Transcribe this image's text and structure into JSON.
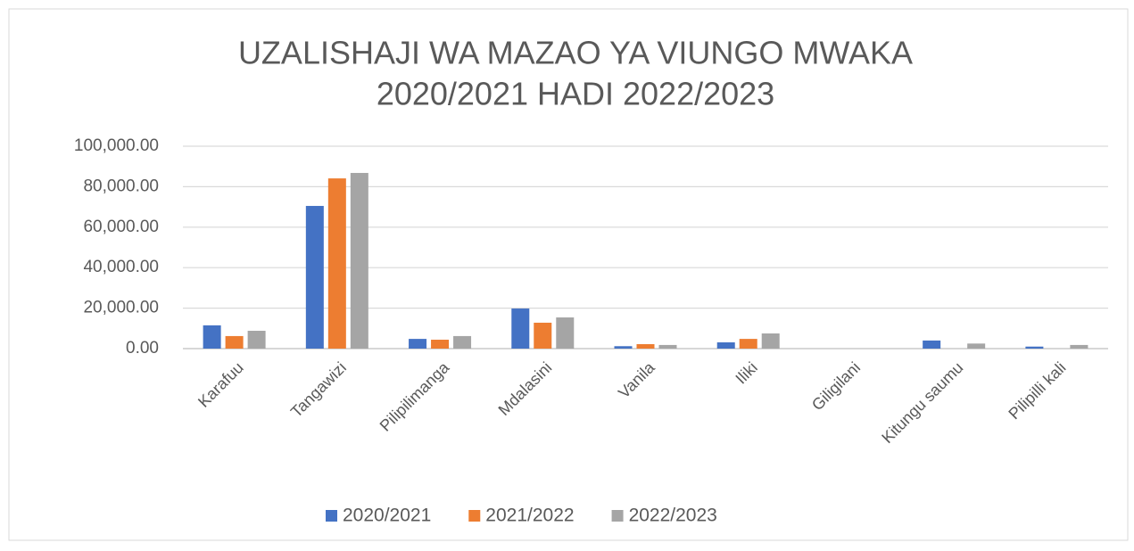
{
  "chart_data": {
    "type": "bar",
    "title": [
      "UZALISHAJI WA MAZAO YA VIUNGO MWAKA",
      "2020/2021 HADI 2022/2023"
    ],
    "categories": [
      "Karafuu",
      "Tangawizi",
      "Pilipilimanga",
      "Mdalasini",
      "Vanila",
      "Iliki",
      "Giligilani",
      "Kitungu saumu",
      "Pilipilli kali"
    ],
    "series": [
      {
        "name": "2020/2021",
        "color": "#4472c4",
        "values": [
          11500,
          70500,
          4800,
          19800,
          1200,
          3100,
          0,
          4000,
          1000
        ]
      },
      {
        "name": "2021/2022",
        "color": "#ed7d31",
        "values": [
          6200,
          84100,
          4400,
          12800,
          2200,
          4800,
          0,
          0,
          0
        ]
      },
      {
        "name": "2022/2023",
        "color": "#a5a5a5",
        "values": [
          8800,
          86800,
          6200,
          15400,
          1800,
          7500,
          0,
          2500,
          1800
        ]
      }
    ],
    "ylim": [
      0,
      100000
    ],
    "yticks": [
      {
        "value": 0,
        "label": "0.00"
      },
      {
        "value": 20000,
        "label": "20,000.00"
      },
      {
        "value": 40000,
        "label": "40,000.00"
      },
      {
        "value": 60000,
        "label": "60,000.00"
      },
      {
        "value": 80000,
        "label": "80,000.00"
      },
      {
        "value": 100000,
        "label": "100,000.00"
      }
    ],
    "grid": true,
    "legend": "bottom"
  }
}
